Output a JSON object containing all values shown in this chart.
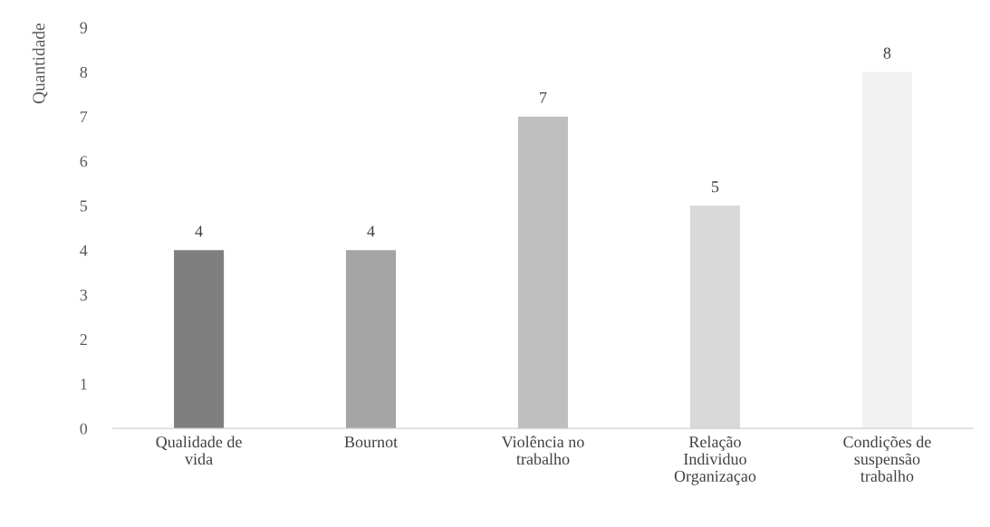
{
  "chart_data": {
    "type": "bar",
    "ylabel": "Quantidade",
    "categories": [
      "Qualidade de\nvida",
      "Bournot",
      "Violência no\ntrabalho",
      "Relação\nIndividuo\nOrganizaçao",
      "Condições de\nsuspensão\ntrabalho"
    ],
    "values": [
      4,
      4,
      7,
      5,
      8
    ],
    "colors": [
      "#7f7f7f",
      "#a5a5a5",
      "#bfbfbf",
      "#d9d9d9",
      "#f2f2f2"
    ],
    "ylim": [
      0,
      9
    ],
    "yticks": [
      0,
      1,
      2,
      3,
      4,
      5,
      6,
      7,
      8,
      9
    ],
    "data_labels": true,
    "grid": false,
    "legend": false
  }
}
